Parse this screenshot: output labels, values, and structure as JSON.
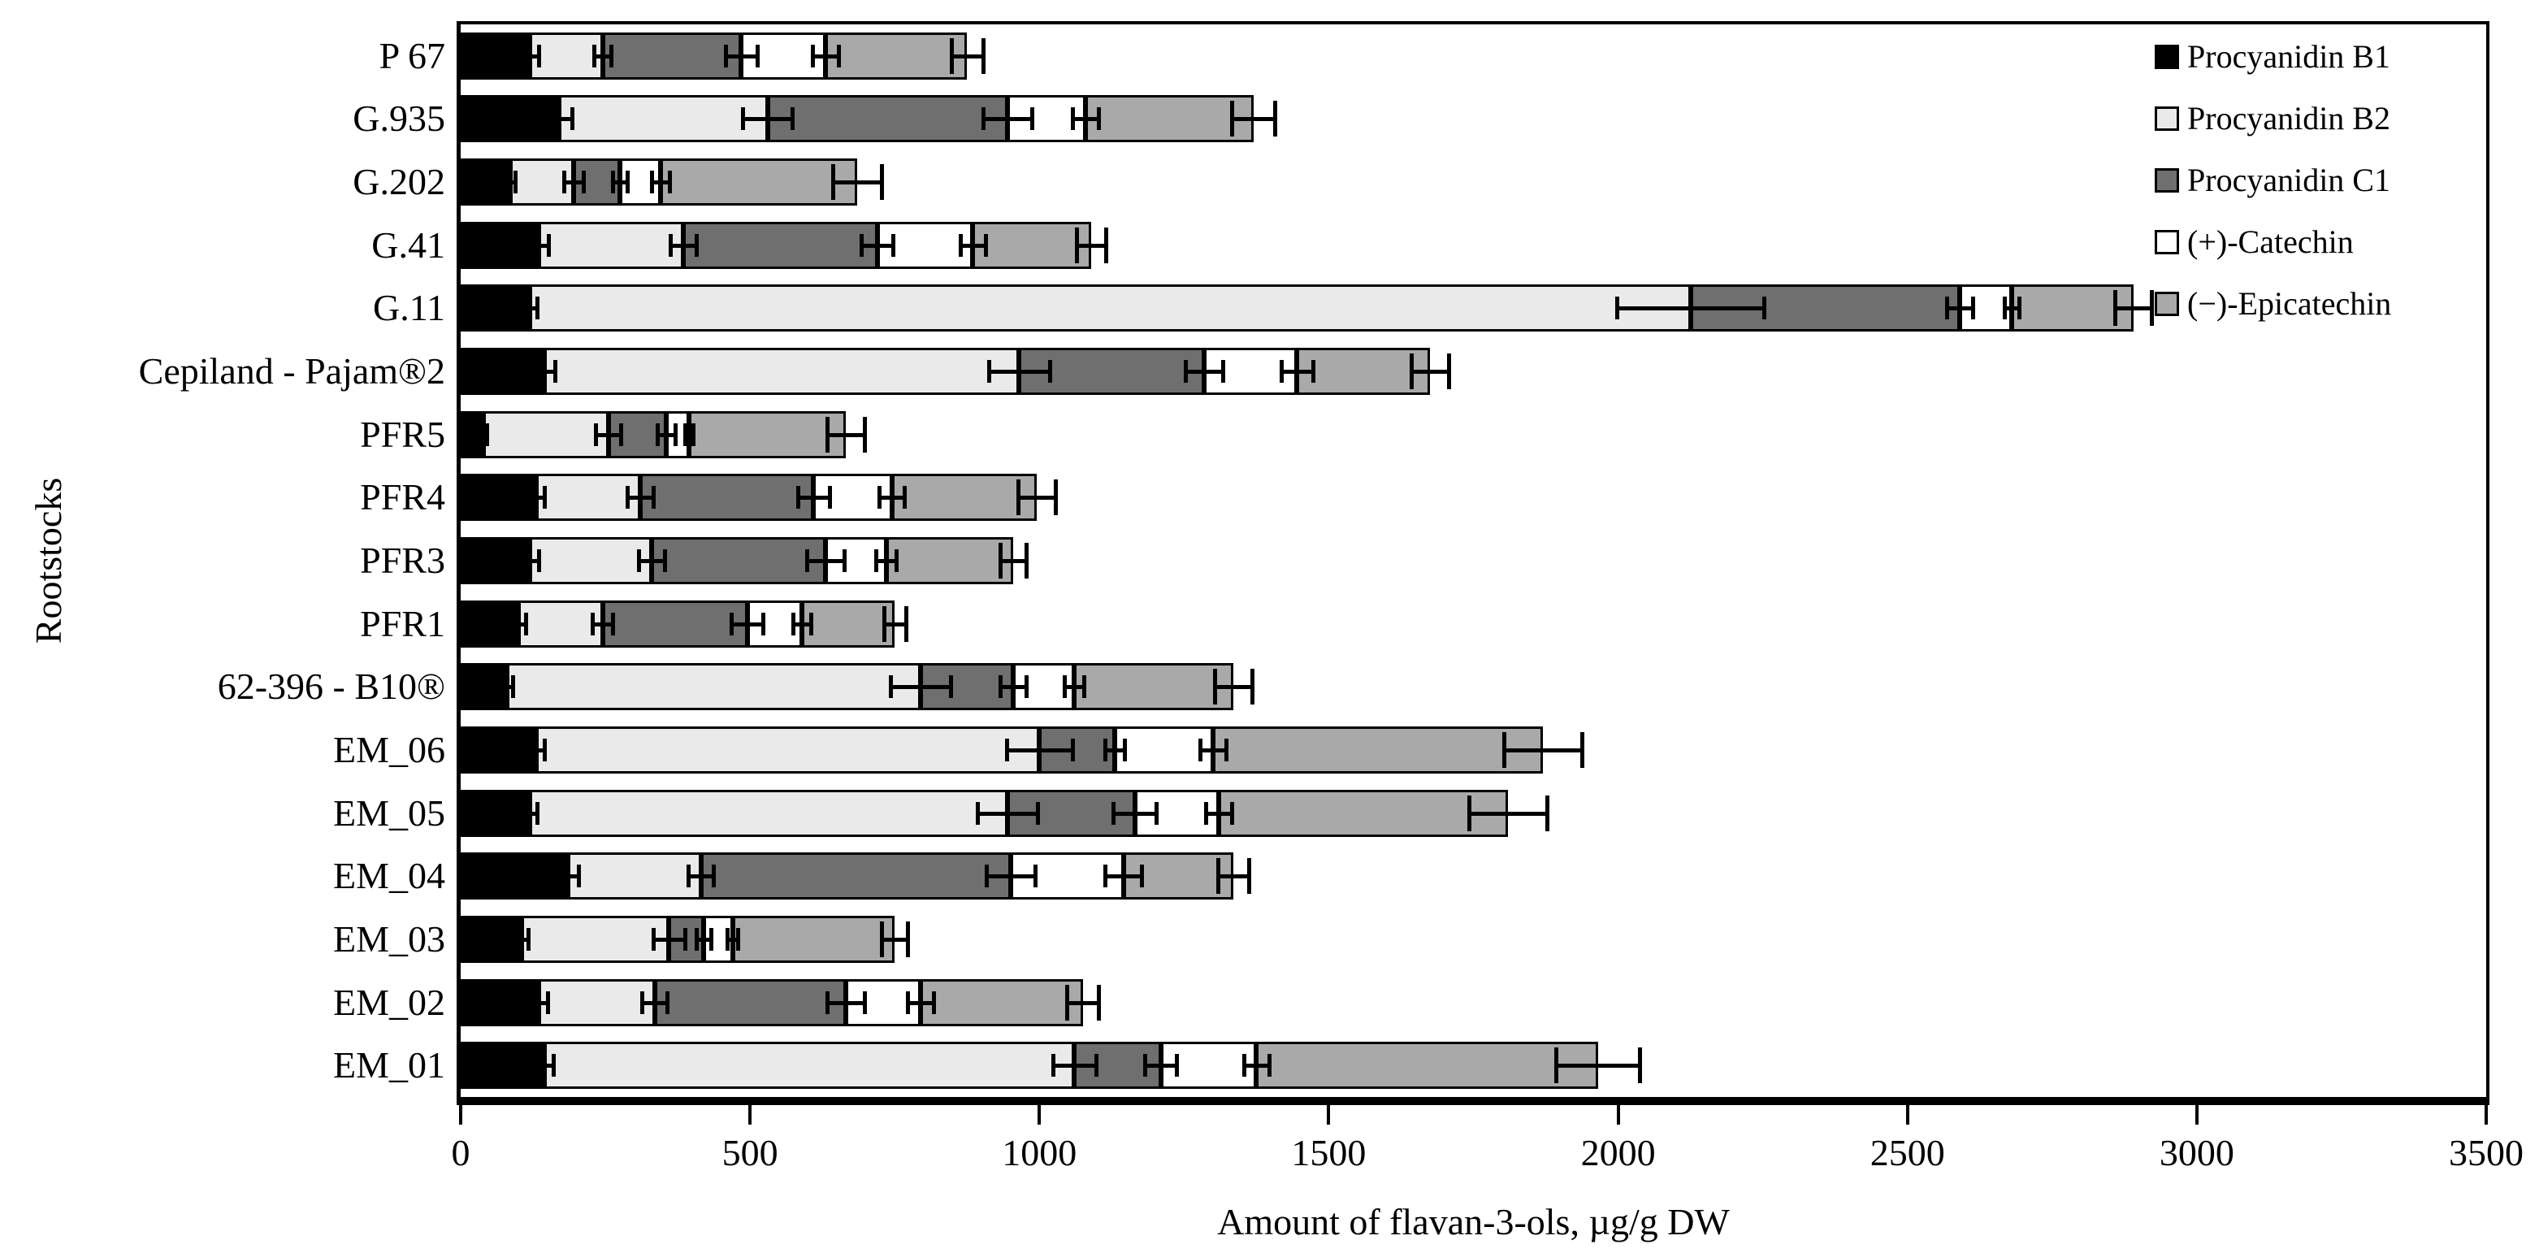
{
  "chart_data": {
    "type": "bar",
    "orientation": "horizontal",
    "stacked": true,
    "title": "",
    "xlabel": "Amount of flavan-3-ols, µg/g DW",
    "ylabel": "Rootstocks",
    "xlim": [
      0,
      3500
    ],
    "xticks": [
      "0",
      "500",
      "1000",
      "1500",
      "2000",
      "2500",
      "3000",
      "3500"
    ],
    "grid": false,
    "legend_position": "top-right-inside",
    "categories_top_to_bottom": [
      "P 67",
      "G.935",
      "G.202",
      "G.41",
      "G.11",
      "Cepiland - Pajam®2",
      "PFR5",
      "PFR4",
      "PFR3",
      "PFR1",
      "62-396 - B10®",
      "EM_06",
      "EM_05",
      "EM_04",
      "EM_03",
      "EM_02",
      "EM_01"
    ],
    "series": [
      {
        "name": "Procyanidin B1",
        "color": "#000000",
        "values": [
          120,
          170,
          85,
          135,
          120,
          145,
          40,
          130,
          120,
          100,
          80,
          130,
          120,
          185,
          105,
          135,
          145
        ]
      },
      {
        "name": "Procyanidin B2",
        "color": "#eaeaea",
        "values": [
          125,
          360,
          110,
          250,
          2005,
          820,
          215,
          180,
          210,
          145,
          715,
          870,
          825,
          230,
          255,
          200,
          915
        ]
      },
      {
        "name": "Procyanidin C1",
        "color": "#6f6f6f",
        "values": [
          240,
          415,
          80,
          335,
          465,
          320,
          100,
          300,
          300,
          250,
          160,
          130,
          220,
          535,
          60,
          330,
          150
        ]
      },
      {
        "name": "(+)-Catechin",
        "color": "#ffffff",
        "values": [
          145,
          135,
          70,
          165,
          90,
          160,
          40,
          135,
          105,
          95,
          105,
          170,
          145,
          195,
          50,
          130,
          165
        ]
      },
      {
        "name": "(−)-Epicatechin",
        "color": "#a9a9a9",
        "values": [
          245,
          290,
          340,
          205,
          210,
          230,
          270,
          250,
          220,
          160,
          275,
          570,
          500,
          190,
          280,
          280,
          590
        ]
      }
    ],
    "totals_top_to_bottom": [
      875,
      1370,
      685,
      1090,
      2890,
      1675,
      665,
      995,
      955,
      750,
      1335,
      1870,
      1810,
      1335,
      750,
      1075,
      1965
    ],
    "segment_errors": [
      [
        18,
        18,
        30,
        25,
        30
      ],
      [
        25,
        45,
        45,
        25,
        40
      ],
      [
        12,
        20,
        15,
        18,
        45
      ],
      [
        20,
        25,
        30,
        25,
        28
      ],
      [
        15,
        130,
        25,
        15,
        35
      ],
      [
        20,
        55,
        35,
        30,
        35
      ],
      [
        8,
        25,
        18,
        10,
        35
      ],
      [
        18,
        25,
        30,
        25,
        35
      ],
      [
        18,
        25,
        35,
        20,
        25
      ],
      [
        15,
        20,
        30,
        18,
        22
      ],
      [
        12,
        55,
        25,
        20,
        35
      ],
      [
        18,
        60,
        20,
        25,
        70
      ],
      [
        15,
        55,
        40,
        25,
        70
      ],
      [
        22,
        25,
        45,
        35,
        30
      ],
      [
        15,
        30,
        15,
        12,
        25
      ],
      [
        18,
        25,
        35,
        25,
        30
      ],
      [
        18,
        40,
        30,
        25,
        75
      ]
    ],
    "colors": {
      "axis": "#000000",
      "bar_outline": "#000000",
      "background": "#ffffff"
    }
  }
}
